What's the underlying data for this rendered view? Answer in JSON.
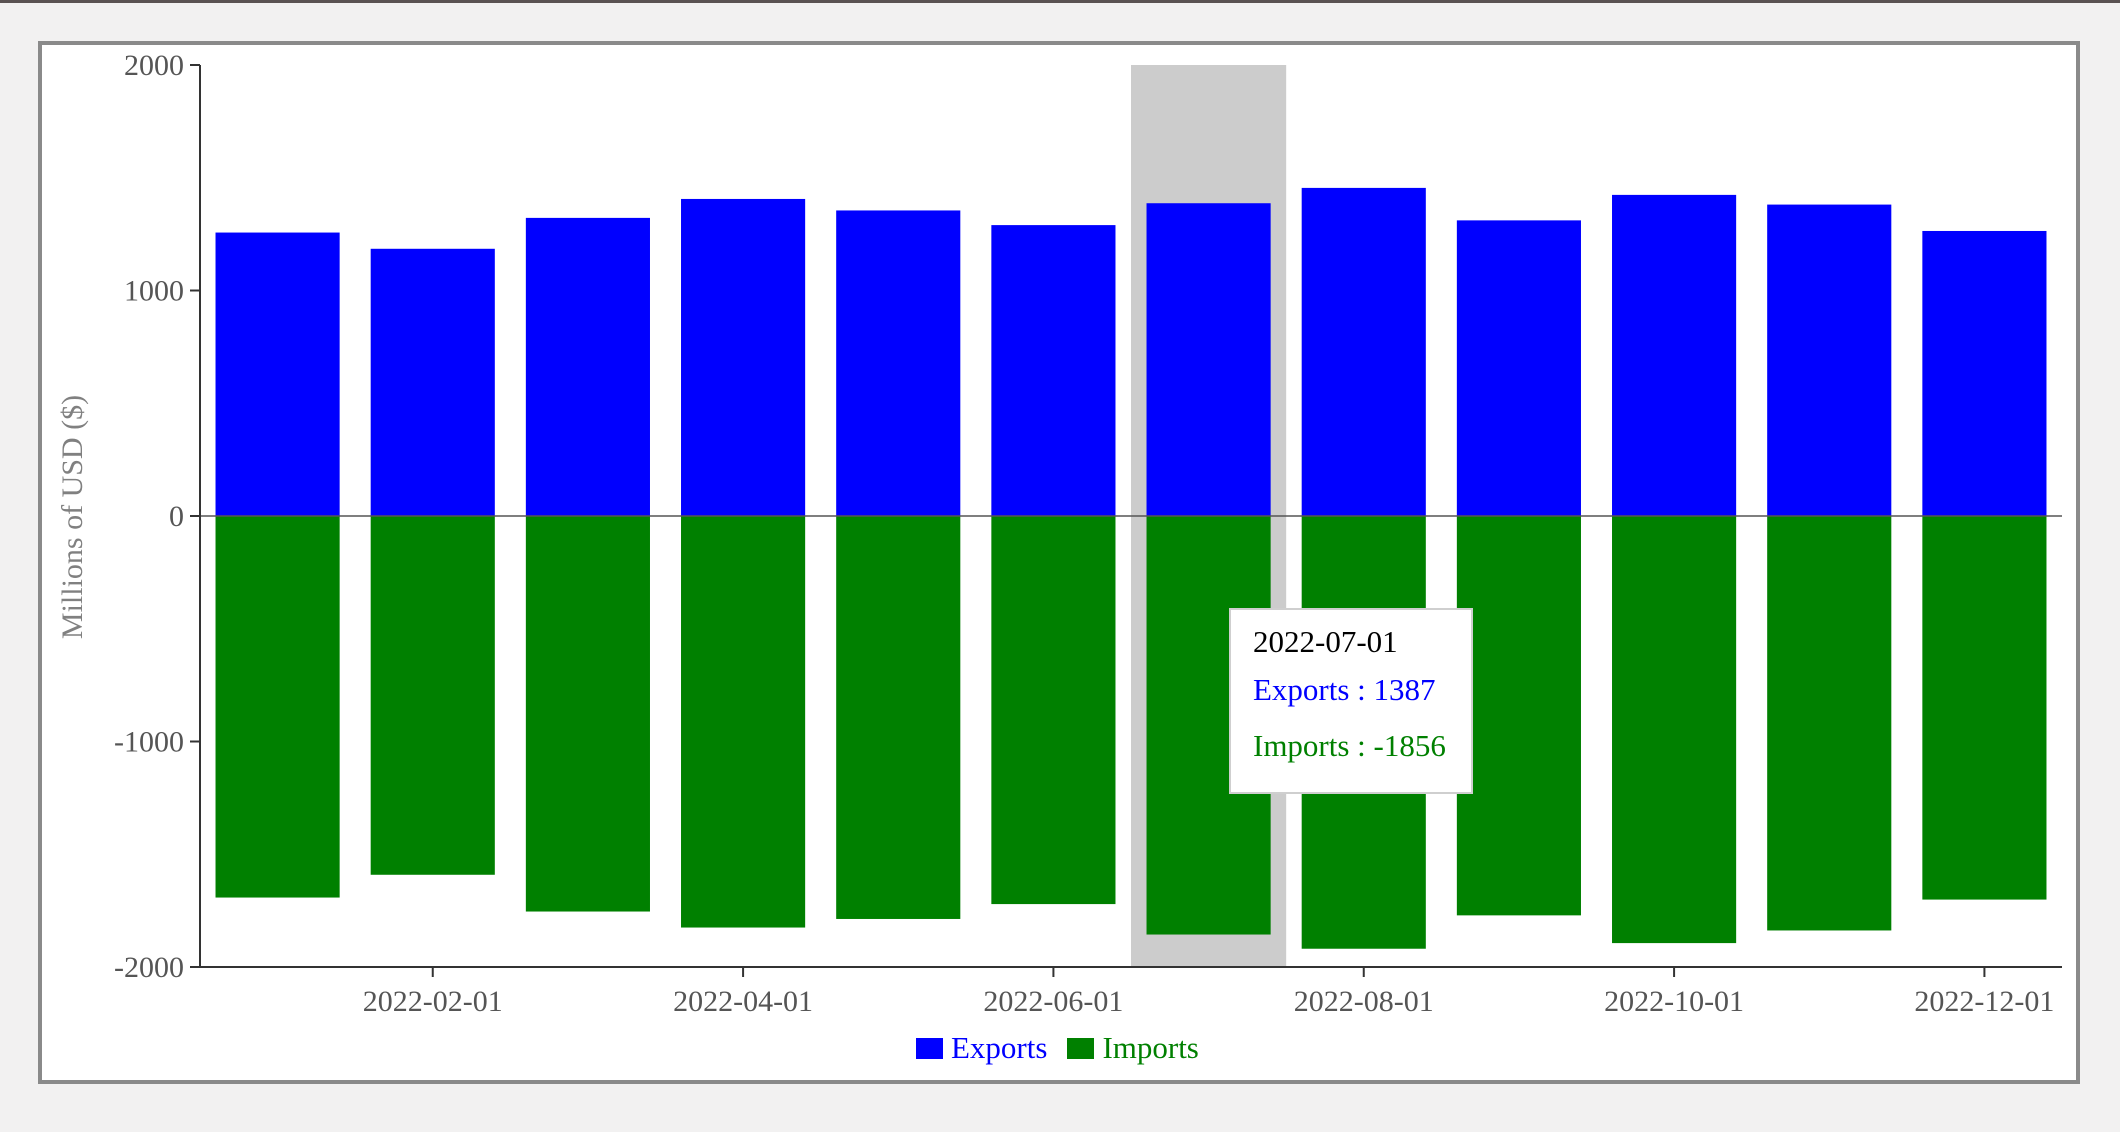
{
  "chart_data": {
    "type": "bar",
    "ylabel": "Millions of USD ($)",
    "ylim": [
      -2000,
      2000
    ],
    "yticks": [
      2000,
      1000,
      0,
      -1000,
      -2000
    ],
    "x": [
      "2022-01-01",
      "2022-02-01",
      "2022-03-01",
      "2022-04-01",
      "2022-05-01",
      "2022-06-01",
      "2022-07-01",
      "2022-08-01",
      "2022-09-01",
      "2022-10-01",
      "2022-11-01",
      "2022-12-01"
    ],
    "xticks": [
      "2022-02-01",
      "2022-04-01",
      "2022-06-01",
      "2022-08-01",
      "2022-10-01",
      "2022-12-01"
    ],
    "series": [
      {
        "name": "Exports",
        "color": "#0000ff",
        "values": [
          1257,
          1185,
          1322,
          1406,
          1355,
          1290,
          1387,
          1455,
          1311,
          1424,
          1381,
          1264
        ]
      },
      {
        "name": "Imports",
        "color": "#008000",
        "values": [
          -1692,
          -1591,
          -1754,
          -1825,
          -1787,
          -1721,
          -1856,
          -1919,
          -1771,
          -1894,
          -1838,
          -1701
        ]
      }
    ],
    "highlight_index": 6,
    "tooltip": {
      "date": "2022-07-01",
      "exports_text": "Exports : 1387",
      "imports_text": "Imports : -1856"
    },
    "legend": {
      "position": "bottom-center",
      "items": [
        "Exports",
        "Imports"
      ]
    },
    "grid": false
  }
}
